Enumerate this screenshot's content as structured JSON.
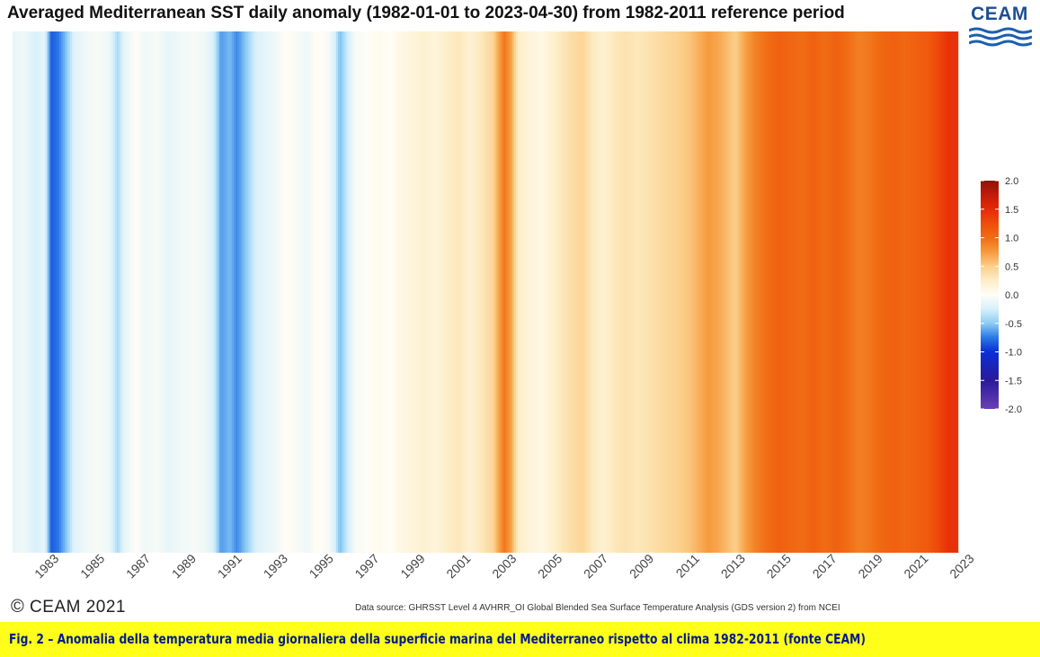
{
  "header": {
    "title": "Averaged Mediterranean SST daily anomaly (1982-01-01 to 2023-04-30) from 1982-2011 reference period",
    "logo_text": "CEAM"
  },
  "footer": {
    "copyright": "CEAM 2021",
    "copyright_symbol": "©",
    "data_source": "Data source: GHRSST Level 4 AVHRR_OI Global Blended Sea Surface Temperature Analysis (GDS version 2) from NCEI"
  },
  "caption": {
    "text": "Fig. 2 – Anomalia della temperatura media giornaliera della superficie marina del Mediterraneo rispetto al clima 1982-2011 (fonte CEAM)"
  },
  "chart_data": {
    "type": "heatmap",
    "title": "Averaged Mediterranean SST daily anomaly (1982-01-01 to 2023-04-30) from 1982-2011 reference period",
    "x_start": 1982.0,
    "x_end": 2023.33,
    "x_ticks": [
      "1983",
      "1985",
      "1987",
      "1989",
      "1991",
      "1993",
      "1995",
      "1997",
      "1999",
      "2001",
      "2003",
      "2005",
      "2007",
      "2009",
      "2011",
      "2013",
      "2015",
      "2017",
      "2019",
      "2021",
      "2023"
    ],
    "anomaly_profile": [
      [
        1982.0,
        -0.15
      ],
      [
        1982.5,
        -0.1
      ],
      [
        1983.0,
        -0.25
      ],
      [
        1983.4,
        -0.15
      ],
      [
        1983.7,
        -0.85
      ],
      [
        1984.0,
        -0.75
      ],
      [
        1984.3,
        -0.55
      ],
      [
        1984.7,
        -0.2
      ],
      [
        1985.2,
        -0.1
      ],
      [
        1985.7,
        -0.05
      ],
      [
        1986.2,
        -0.1
      ],
      [
        1986.6,
        -0.4
      ],
      [
        1986.9,
        -0.15
      ],
      [
        1987.4,
        0.0
      ],
      [
        1987.8,
        -0.1
      ],
      [
        1988.3,
        -0.05
      ],
      [
        1988.8,
        -0.15
      ],
      [
        1989.3,
        -0.1
      ],
      [
        1989.9,
        -0.05
      ],
      [
        1990.4,
        -0.1
      ],
      [
        1990.8,
        -0.25
      ],
      [
        1991.1,
        -0.65
      ],
      [
        1991.5,
        -0.55
      ],
      [
        1991.8,
        -0.7
      ],
      [
        1992.2,
        -0.5
      ],
      [
        1992.6,
        -0.25
      ],
      [
        1993.1,
        -0.15
      ],
      [
        1993.5,
        -0.1
      ],
      [
        1994.0,
        0.02
      ],
      [
        1994.4,
        -0.05
      ],
      [
        1994.9,
        -0.1
      ],
      [
        1995.3,
        0.02
      ],
      [
        1995.8,
        -0.05
      ],
      [
        1996.1,
        -0.25
      ],
      [
        1996.3,
        -0.55
      ],
      [
        1996.6,
        -0.3
      ],
      [
        1997.0,
        -0.05
      ],
      [
        1997.5,
        0.0
      ],
      [
        1998.0,
        0.05
      ],
      [
        1998.5,
        0.0
      ],
      [
        1999.0,
        0.1
      ],
      [
        1999.5,
        0.15
      ],
      [
        2000.0,
        0.2
      ],
      [
        2000.5,
        0.15
      ],
      [
        2001.0,
        0.25
      ],
      [
        2001.5,
        0.3
      ],
      [
        2002.0,
        0.2
      ],
      [
        2002.5,
        0.3
      ],
      [
        2003.0,
        0.45
      ],
      [
        2003.5,
        0.95
      ],
      [
        2003.8,
        0.7
      ],
      [
        2004.1,
        0.25
      ],
      [
        2004.6,
        0.15
      ],
      [
        2005.1,
        0.1
      ],
      [
        2005.6,
        0.2
      ],
      [
        2006.0,
        0.3
      ],
      [
        2006.5,
        0.4
      ],
      [
        2006.9,
        0.45
      ],
      [
        2007.3,
        0.3
      ],
      [
        2007.8,
        0.2
      ],
      [
        2008.3,
        0.3
      ],
      [
        2008.8,
        0.35
      ],
      [
        2009.3,
        0.3
      ],
      [
        2009.8,
        0.35
      ],
      [
        2010.3,
        0.4
      ],
      [
        2010.8,
        0.45
      ],
      [
        2011.2,
        0.5
      ],
      [
        2011.6,
        0.55
      ],
      [
        2012.0,
        0.65
      ],
      [
        2012.4,
        0.75
      ],
      [
        2012.8,
        0.7
      ],
      [
        2013.2,
        0.6
      ],
      [
        2013.6,
        0.5
      ],
      [
        2014.0,
        0.7
      ],
      [
        2014.5,
        0.9
      ],
      [
        2015.0,
        1.0
      ],
      [
        2015.5,
        1.1
      ],
      [
        2016.0,
        1.05
      ],
      [
        2016.5,
        1.0
      ],
      [
        2017.0,
        1.1
      ],
      [
        2017.5,
        1.0
      ],
      [
        2018.0,
        1.1
      ],
      [
        2018.5,
        1.0
      ],
      [
        2019.0,
        0.9
      ],
      [
        2019.5,
        0.95
      ],
      [
        2020.0,
        1.05
      ],
      [
        2020.5,
        1.1
      ],
      [
        2021.0,
        1.05
      ],
      [
        2021.5,
        1.1
      ],
      [
        2022.0,
        1.15
      ],
      [
        2022.5,
        1.3
      ],
      [
        2022.9,
        1.45
      ],
      [
        2023.33,
        1.45
      ]
    ],
    "colorbar": {
      "min": -2.0,
      "max": 2.0,
      "ticks": [
        "2.0",
        "1.5",
        "1.0",
        "0.5",
        "0.0",
        "-0.5",
        "-1.0",
        "-1.5",
        "-2.0"
      ],
      "colors": [
        [
          -2.0,
          "#6a3fb5"
        ],
        [
          -1.5,
          "#2a1a9a"
        ],
        [
          -1.0,
          "#0a2fd6"
        ],
        [
          -0.75,
          "#2a78e6"
        ],
        [
          -0.5,
          "#8dccf3"
        ],
        [
          -0.25,
          "#d8f0fb"
        ],
        [
          0.0,
          "#fffdf6"
        ],
        [
          0.25,
          "#fdeec8"
        ],
        [
          0.5,
          "#fbcf8a"
        ],
        [
          0.75,
          "#f69a3c"
        ],
        [
          1.0,
          "#f06d14"
        ],
        [
          1.25,
          "#ef4d0b"
        ],
        [
          1.5,
          "#e52a08"
        ],
        [
          1.75,
          "#c21a0a"
        ],
        [
          2.0,
          "#8c1408"
        ]
      ]
    }
  }
}
